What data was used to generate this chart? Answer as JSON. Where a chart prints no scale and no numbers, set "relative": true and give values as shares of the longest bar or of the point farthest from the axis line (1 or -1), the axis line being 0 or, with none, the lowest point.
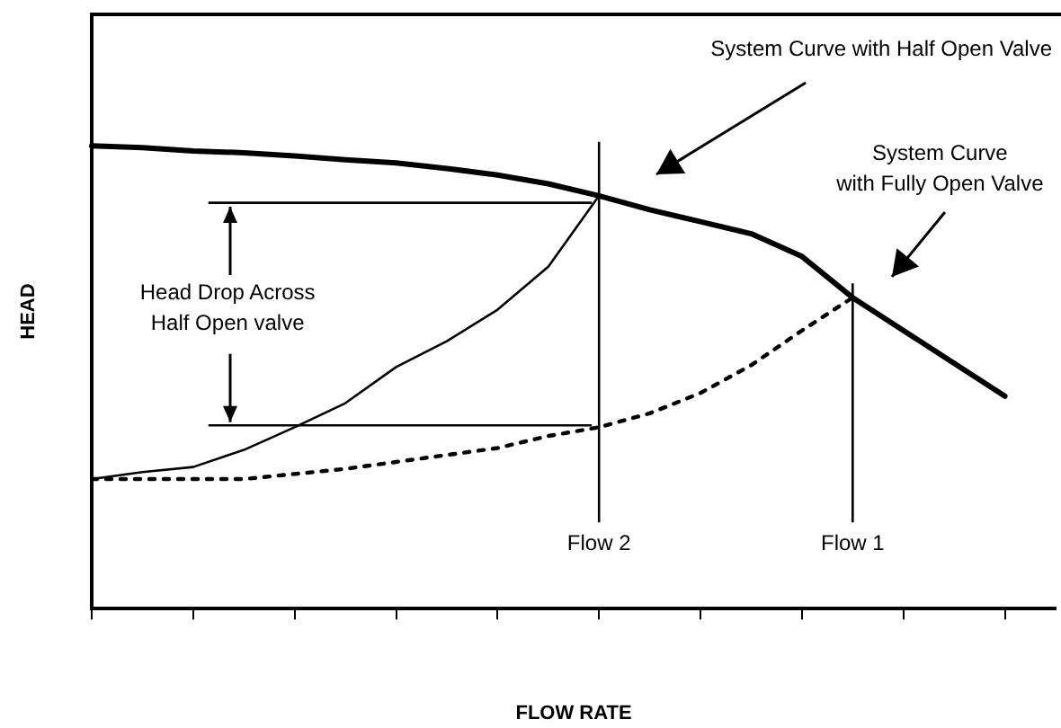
{
  "chart_data": {
    "type": "line",
    "relative": true,
    "xlabel": "FLOW RATE",
    "ylabel": "HEAD",
    "categories": [
      null,
      null,
      null,
      null,
      null,
      null,
      null,
      null,
      null,
      null,
      null,
      null,
      null,
      null,
      null,
      null,
      null,
      null,
      null,
      null
    ],
    "series": [
      {
        "color": "#000000",
        "line_style": "solid",
        "values": [
          1.0,
          0.996,
          0.989,
          0.985,
          0.978,
          0.97,
          0.963,
          0.951,
          0.937,
          0.918,
          0.892,
          0.862,
          0.836,
          0.81,
          0.761,
          0.672,
          0.601,
          0.53,
          0.459,
          null
        ]
      },
      {
        "color": "#000000",
        "line_style": "solid",
        "values": [
          0.28,
          0.295,
          0.306,
          0.343,
          0.392,
          0.444,
          0.522,
          0.578,
          0.646,
          0.739,
          0.892,
          null,
          null,
          null,
          null,
          null,
          null,
          null,
          null,
          null
        ]
      },
      {
        "color": "#000000",
        "line_style": "dotted",
        "values": [
          0.28,
          0.28,
          0.28,
          0.28,
          0.291,
          0.302,
          0.317,
          0.332,
          0.347,
          0.373,
          0.392,
          0.422,
          0.466,
          0.526,
          0.601,
          0.672,
          null,
          null,
          null,
          null
        ]
      }
    ],
    "ref_lines": [
      {
        "axis": "y",
        "value": 0.877
      },
      {
        "axis": "y",
        "value": 0.396
      }
    ],
    "annotations": [
      "System Curve with Half Open Valve",
      "System Curve\nwith Fully Open Valve",
      "Head Drop Across\nHalf Open valve",
      "Flow 2",
      "Flow 1"
    ],
    "grid": false,
    "legend": false,
    "marker": "none"
  }
}
